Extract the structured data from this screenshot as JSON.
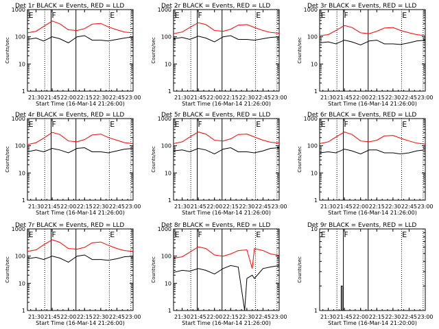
{
  "chart_data": [
    {
      "type": "line",
      "title": "Det 1r BLACK = Events, RED = LLD",
      "xlabel": "Start Time (16-Mar-14 21:26:00)",
      "ylabel": "Counts/sec",
      "y_scale": "log",
      "ylim": [
        1,
        1000
      ],
      "y_ticks": [
        "1",
        "10",
        "100",
        "1000"
      ],
      "xlim": [
        "21:22",
        "23:00"
      ],
      "x_ticks": [
        "21:30",
        "21:45",
        "22:00",
        "22:15",
        "22:30",
        "22:45",
        "23:00"
      ],
      "annotations": [
        "E",
        "F",
        "E"
      ],
      "series": [
        {
          "color": "#ff0000",
          "x": [
            "21:22",
            "21:30",
            "21:37",
            "21:45",
            "21:52",
            "22:00",
            "22:08",
            "22:15",
            "22:22",
            "22:30",
            "22:37",
            "22:45",
            "22:52",
            "23:00"
          ],
          "y": [
            140,
            160,
            240,
            380,
            300,
            180,
            170,
            200,
            290,
            310,
            230,
            180,
            150,
            140
          ]
        },
        {
          "color": "#000000",
          "x": [
            "21:22",
            "21:30",
            "21:37",
            "21:45",
            "21:52",
            "22:00",
            "22:08",
            "22:15",
            "22:22",
            "22:30",
            "22:37",
            "22:45",
            "22:52",
            "23:00"
          ],
          "y": [
            80,
            90,
            70,
            100,
            85,
            60,
            100,
            110,
            75,
            75,
            70,
            80,
            90,
            100
          ]
        }
      ]
    },
    {
      "type": "line",
      "title": "Det 2r BLACK = Events, RED = LLD",
      "xlabel": "Start Time (16-Mar-14 21:26:00)",
      "ylabel": "Counts/sec",
      "y_scale": "log",
      "ylim": [
        1,
        1000
      ],
      "y_ticks": [
        "1",
        "10",
        "100",
        "1000"
      ],
      "xlim": [
        "21:22",
        "23:00"
      ],
      "x_ticks": [
        "21:30",
        "21:45",
        "22:00",
        "22:15",
        "22:30",
        "22:45",
        "23:00"
      ],
      "annotations": [
        "E",
        "F",
        "E"
      ],
      "series": [
        {
          "color": "#ff0000",
          "x": [
            "21:22",
            "21:30",
            "21:37",
            "21:45",
            "21:52",
            "22:00",
            "22:08",
            "22:15",
            "22:22",
            "22:30",
            "22:37",
            "22:45",
            "22:52",
            "23:00"
          ],
          "y": [
            130,
            150,
            220,
            330,
            280,
            170,
            160,
            190,
            270,
            280,
            220,
            170,
            145,
            135
          ]
        },
        {
          "color": "#000000",
          "x": [
            "21:22",
            "21:30",
            "21:37",
            "21:45",
            "21:52",
            "22:00",
            "22:08",
            "22:15",
            "22:22",
            "22:30",
            "22:37",
            "22:45",
            "22:52",
            "23:00"
          ],
          "y": [
            85,
            95,
            80,
            105,
            90,
            65,
            100,
            110,
            80,
            80,
            75,
            85,
            95,
            100
          ]
        }
      ]
    },
    {
      "type": "line",
      "title": "Det 3r BLACK = Events, RED = LLD",
      "xlabel": "Start Time (16-Mar-14 21:26:00)",
      "ylabel": "Counts/sec",
      "y_scale": "log",
      "ylim": [
        1,
        1000
      ],
      "y_ticks": [
        "1",
        "10",
        "100",
        "1000"
      ],
      "xlim": [
        "21:22",
        "23:00"
      ],
      "x_ticks": [
        "21:30",
        "21:45",
        "22:00",
        "22:15",
        "22:30",
        "22:45",
        "23:00"
      ],
      "annotations": [
        "E",
        "F",
        "E"
      ],
      "series": [
        {
          "color": "#ff0000",
          "x": [
            "21:22",
            "21:30",
            "21:37",
            "21:45",
            "21:52",
            "22:00",
            "22:08",
            "22:15",
            "22:22",
            "22:30",
            "22:37",
            "22:45",
            "22:52",
            "23:00"
          ],
          "y": [
            110,
            120,
            170,
            260,
            220,
            140,
            130,
            160,
            210,
            220,
            170,
            140,
            120,
            110
          ]
        },
        {
          "color": "#000000",
          "x": [
            "21:22",
            "21:30",
            "21:37",
            "21:45",
            "21:52",
            "22:00",
            "22:08",
            "22:15",
            "22:22",
            "22:30",
            "22:37",
            "22:45",
            "22:52",
            "23:00"
          ],
          "y": [
            60,
            65,
            55,
            75,
            65,
            50,
            70,
            75,
            55,
            55,
            52,
            60,
            70,
            75
          ]
        }
      ]
    },
    {
      "type": "line",
      "title": "Det 4r BLACK = Events, RED = LLD",
      "xlabel": "Start Time (16-Mar-14 21:26:00)",
      "ylabel": "Counts/sec",
      "y_scale": "log",
      "ylim": [
        1,
        1000
      ],
      "y_ticks": [
        "1",
        "10",
        "100",
        "1000"
      ],
      "xlim": [
        "21:22",
        "23:00"
      ],
      "x_ticks": [
        "21:30",
        "21:45",
        "22:00",
        "22:15",
        "22:30",
        "22:45",
        "23:00"
      ],
      "annotations": [
        "E",
        "F",
        "E"
      ],
      "series": [
        {
          "color": "#ff0000",
          "x": [
            "21:22",
            "21:30",
            "21:37",
            "21:45",
            "21:52",
            "22:00",
            "22:08",
            "22:15",
            "22:22",
            "22:30",
            "22:37",
            "22:45",
            "22:52",
            "23:00"
          ],
          "y": [
            110,
            130,
            190,
            310,
            260,
            150,
            140,
            170,
            250,
            270,
            200,
            160,
            130,
            120
          ]
        },
        {
          "color": "#000000",
          "x": [
            "21:22",
            "21:30",
            "21:37",
            "21:45",
            "21:52",
            "22:00",
            "22:08",
            "22:15",
            "22:22",
            "22:30",
            "22:37",
            "22:45",
            "22:52",
            "23:00"
          ],
          "y": [
            60,
            70,
            60,
            80,
            70,
            55,
            80,
            85,
            60,
            60,
            55,
            65,
            75,
            80
          ]
        }
      ]
    },
    {
      "type": "line",
      "title": "Det 5r BLACK = Events, RED = LLD",
      "xlabel": "Start Time (16-Mar-14 21:26:00)",
      "ylabel": "Counts/sec",
      "y_scale": "log",
      "ylim": [
        1,
        1000
      ],
      "y_ticks": [
        "1",
        "10",
        "100",
        "1000"
      ],
      "xlim": [
        "21:22",
        "23:00"
      ],
      "x_ticks": [
        "21:30",
        "21:45",
        "22:00",
        "22:15",
        "22:30",
        "22:45",
        "23:00"
      ],
      "annotations": [
        "E",
        "F",
        "E"
      ],
      "series": [
        {
          "color": "#ff0000",
          "x": [
            "21:22",
            "21:30",
            "21:37",
            "21:45",
            "21:52",
            "22:00",
            "22:08",
            "22:15",
            "22:22",
            "22:30",
            "22:37",
            "22:45",
            "22:52",
            "23:00"
          ],
          "y": [
            120,
            140,
            210,
            320,
            270,
            160,
            150,
            180,
            260,
            270,
            210,
            160,
            135,
            125
          ]
        },
        {
          "color": "#000000",
          "x": [
            "21:22",
            "21:30",
            "21:37",
            "21:45",
            "21:52",
            "22:00",
            "22:08",
            "22:15",
            "22:22",
            "22:30",
            "22:37",
            "22:45",
            "22:52",
            "23:00"
          ],
          "y": [
            65,
            70,
            60,
            80,
            70,
            50,
            75,
            85,
            60,
            60,
            55,
            65,
            80,
            85
          ]
        }
      ]
    },
    {
      "type": "line",
      "title": "Det 6r BLACK = Events, RED = LLD",
      "xlabel": "Start Time (16-Mar-14 21:26:00)",
      "ylabel": "Counts/sec",
      "y_scale": "log",
      "ylim": [
        1,
        1000
      ],
      "y_ticks": [
        "1",
        "10",
        "100",
        "1000"
      ],
      "xlim": [
        "21:22",
        "23:00"
      ],
      "x_ticks": [
        "21:30",
        "21:45",
        "22:00",
        "22:15",
        "22:30",
        "22:45",
        "23:00"
      ],
      "annotations": [
        "E",
        "F",
        "E"
      ],
      "series": [
        {
          "color": "#ff0000",
          "x": [
            "21:22",
            "21:30",
            "21:37",
            "21:45",
            "21:52",
            "22:00",
            "22:08",
            "22:15",
            "22:22",
            "22:30",
            "22:37",
            "22:45",
            "22:52",
            "23:00"
          ],
          "y": [
            120,
            140,
            210,
            320,
            260,
            150,
            140,
            160,
            230,
            240,
            190,
            150,
            125,
            115
          ]
        },
        {
          "color": "#000000",
          "x": [
            "21:22",
            "21:30",
            "21:37",
            "21:45",
            "21:52",
            "22:00",
            "22:08",
            "22:15",
            "22:22",
            "22:30",
            "22:37",
            "22:45",
            "22:52",
            "23:00"
          ],
          "y": [
            55,
            60,
            55,
            75,
            65,
            50,
            70,
            70,
            55,
            55,
            50,
            55,
            65,
            70
          ]
        }
      ]
    },
    {
      "type": "line",
      "title": "Det 7r BLACK = Events, RED = LLD",
      "xlabel": "Start Time (16-Mar-14 21:26:00)",
      "ylabel": "Counts/sec",
      "y_scale": "log",
      "ylim": [
        1,
        1000
      ],
      "y_ticks": [
        "1",
        "10",
        "100",
        "1000"
      ],
      "xlim": [
        "21:22",
        "23:00"
      ],
      "x_ticks": [
        "21:30",
        "21:45",
        "22:00",
        "22:15",
        "22:30",
        "22:45",
        "23:00"
      ],
      "annotations": [
        "E",
        "F",
        "E"
      ],
      "series": [
        {
          "color": "#ff0000",
          "x": [
            "21:22",
            "21:30",
            "21:37",
            "21:45",
            "21:52",
            "22:00",
            "22:08",
            "22:15",
            "22:22",
            "22:30",
            "22:37",
            "22:45",
            "22:52",
            "23:00"
          ],
          "y": [
            150,
            170,
            260,
            400,
            320,
            190,
            180,
            210,
            310,
            330,
            250,
            190,
            160,
            150
          ]
        },
        {
          "color": "#000000",
          "x": [
            "21:22",
            "21:30",
            "21:37",
            "21:45",
            "21:52",
            "22:00",
            "22:08",
            "22:15",
            "22:22",
            "22:30",
            "22:37",
            "22:45",
            "22:52",
            "23:00"
          ],
          "y": [
            80,
            90,
            75,
            100,
            85,
            60,
            100,
            110,
            75,
            75,
            70,
            80,
            95,
            100
          ]
        }
      ]
    },
    {
      "type": "line",
      "title": "Det 8r BLACK = Events, RED = LLD",
      "xlabel": "Start Time (16-Mar-14 21:26:00)",
      "ylabel": "Counts/sec",
      "y_scale": "log",
      "ylim": [
        1,
        1000
      ],
      "y_ticks": [
        "1",
        "10",
        "100",
        "1000"
      ],
      "xlim": [
        "21:22",
        "23:00"
      ],
      "x_ticks": [
        "21:30",
        "21:45",
        "22:00",
        "22:15",
        "22:30",
        "22:45",
        "23:00"
      ],
      "annotations": [
        "E",
        "F",
        "E"
      ],
      "series": [
        {
          "color": "#ff0000",
          "x": [
            "21:22",
            "21:30",
            "21:37",
            "21:45",
            "21:52",
            "22:00",
            "22:08",
            "22:15",
            "22:22",
            "22:30",
            "22:35",
            "22:37",
            "22:45",
            "22:52",
            "23:00"
          ],
          "y": [
            85,
            95,
            140,
            220,
            190,
            110,
            100,
            120,
            160,
            170,
            35,
            190,
            160,
            120,
            105
          ]
        },
        {
          "color": "#000000",
          "x": [
            "21:22",
            "21:30",
            "21:37",
            "21:45",
            "21:52",
            "22:00",
            "22:08",
            "22:15",
            "22:22",
            "22:28",
            "22:30",
            "22:35",
            "22:37",
            "22:45",
            "22:52",
            "23:00"
          ],
          "y": [
            25,
            30,
            28,
            35,
            30,
            22,
            35,
            45,
            40,
            1,
            15,
            20,
            15,
            35,
            40,
            45
          ]
        }
      ]
    },
    {
      "type": "line",
      "title": "Det 9r BLACK = Events, RED = LLD",
      "xlabel": "Start Time (16-Mar-14 21:20:00)",
      "ylabel": "Counts/sec",
      "y_scale": "log",
      "ylim": [
        1,
        10
      ],
      "y_ticks": [
        "1",
        "10"
      ],
      "xlim": [
        "21:22",
        "23:00"
      ],
      "x_ticks": [
        "21:30",
        "21:45",
        "22:00",
        "22:15",
        "22:30",
        "22:45",
        "23:00"
      ],
      "annotations": [
        "E",
        "F",
        "E"
      ],
      "series": [
        {
          "color": "#000000",
          "x": [
            "21:42",
            "21:42",
            "21:43",
            "21:43",
            "21:44",
            "21:44"
          ],
          "y": [
            1,
            2,
            2,
            1,
            1,
            1
          ]
        }
      ]
    }
  ]
}
